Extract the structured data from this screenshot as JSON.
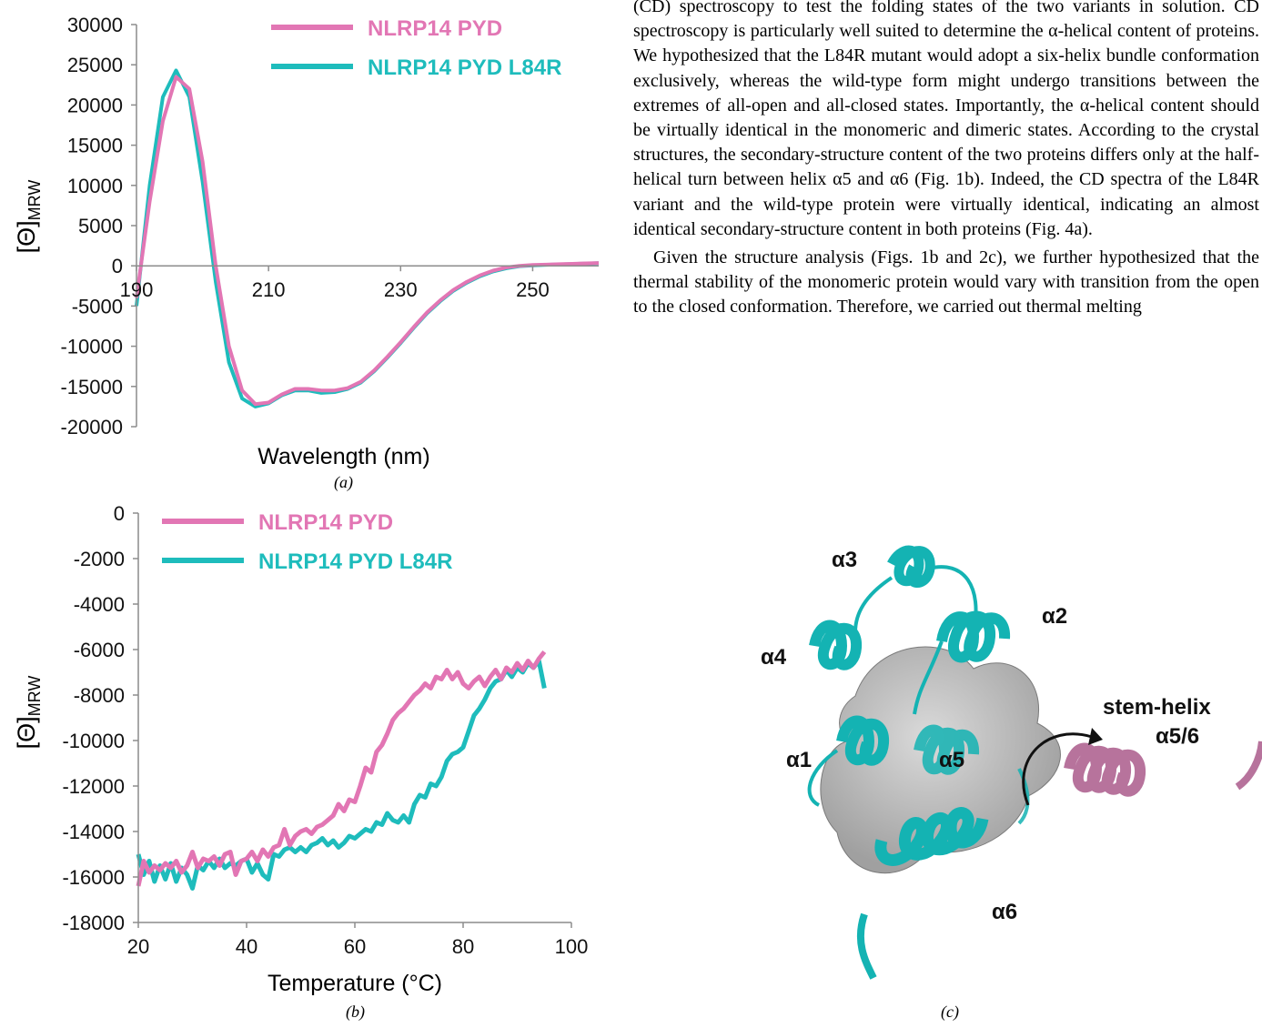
{
  "panel_a": {
    "caption": "(a)",
    "chart_data": {
      "type": "line",
      "title": "",
      "xlabel": "Wavelength (nm)",
      "ylabel": "[Θ]MRW",
      "xlim": [
        190,
        260
      ],
      "ylim": [
        -20000,
        30000
      ],
      "xticks": [
        "190",
        "210",
        "230",
        "250"
      ],
      "yticks": [
        "30000",
        "25000",
        "20000",
        "15000",
        "10000",
        "5000",
        "0",
        "-5000",
        "-10000",
        "-15000",
        "-20000"
      ],
      "legend_position": "top-right",
      "series": [
        {
          "name": "NLRP14 PYD",
          "color": "#e276b4",
          "x": [
            190,
            192,
            194,
            196,
            198,
            200,
            202,
            204,
            206,
            208,
            210,
            212,
            214,
            216,
            218,
            220,
            222,
            224,
            226,
            228,
            230,
            232,
            234,
            236,
            238,
            240,
            242,
            244,
            246,
            248,
            250,
            252,
            254,
            256,
            258,
            260
          ],
          "y": [
            -4000,
            8000,
            18000,
            23500,
            22000,
            13000,
            0,
            -10000,
            -15500,
            -17200,
            -17000,
            -16000,
            -15300,
            -15300,
            -15500,
            -15500,
            -15200,
            -14400,
            -13000,
            -11300,
            -9500,
            -7600,
            -5800,
            -4300,
            -3000,
            -2000,
            -1200,
            -600,
            -200,
            0,
            100,
            150,
            200,
            250,
            300,
            350
          ]
        },
        {
          "name": "NLRP14 PYD L84R",
          "color": "#1ebcbc",
          "x": [
            190,
            192,
            194,
            196,
            198,
            200,
            202,
            204,
            206,
            208,
            210,
            212,
            214,
            216,
            218,
            220,
            222,
            224,
            226,
            228,
            230,
            232,
            234,
            236,
            238,
            240,
            242,
            244,
            246,
            248,
            250,
            252,
            254,
            256,
            258,
            260
          ],
          "y": [
            -5000,
            10000,
            21000,
            24300,
            21000,
            10500,
            -2000,
            -12000,
            -16500,
            -17500,
            -17100,
            -16100,
            -15500,
            -15500,
            -15800,
            -15700,
            -15300,
            -14500,
            -13100,
            -11400,
            -9600,
            -7700,
            -5900,
            -4400,
            -3100,
            -2100,
            -1300,
            -700,
            -300,
            -50,
            50,
            120,
            180,
            230,
            280,
            330
          ]
        }
      ]
    }
  },
  "panel_b": {
    "caption": "(b)",
    "chart_data": {
      "type": "line",
      "title": "",
      "xlabel": "Temperature (°C)",
      "ylabel": "[Θ]MRW",
      "xlim": [
        20,
        100
      ],
      "ylim": [
        -18000,
        0
      ],
      "xticks": [
        "20",
        "40",
        "60",
        "80",
        "100"
      ],
      "yticks": [
        "0",
        "-2000",
        "-4000",
        "-6000",
        "-8000",
        "-10000",
        "-12000",
        "-14000",
        "-16000",
        "-18000"
      ],
      "legend_position": "top-left",
      "series": [
        {
          "name": "NLRP14 PYD",
          "color": "#e276b4",
          "x": [
            20,
            21,
            22,
            23,
            24,
            25,
            26,
            27,
            28,
            29,
            30,
            31,
            32,
            33,
            34,
            35,
            36,
            37,
            38,
            39,
            40,
            41,
            42,
            43,
            44,
            45,
            46,
            47,
            48,
            49,
            50,
            51,
            52,
            53,
            54,
            55,
            56,
            57,
            58,
            59,
            60,
            61,
            62,
            63,
            64,
            65,
            66,
            67,
            68,
            69,
            70,
            71,
            72,
            73,
            74,
            75,
            76,
            77,
            78,
            79,
            80,
            81,
            82,
            83,
            84,
            85,
            86,
            87,
            88,
            89,
            90,
            91,
            92,
            93,
            94,
            95
          ],
          "y": [
            -16400,
            -15300,
            -15800,
            -15500,
            -15700,
            -15400,
            -15600,
            -15300,
            -15800,
            -15500,
            -14900,
            -15600,
            -15200,
            -15300,
            -15100,
            -15500,
            -15000,
            -14900,
            -15900,
            -15300,
            -15200,
            -14900,
            -15300,
            -14800,
            -15100,
            -14700,
            -14600,
            -13900,
            -14600,
            -14200,
            -14000,
            -13900,
            -14100,
            -13800,
            -13700,
            -13500,
            -13300,
            -12800,
            -13100,
            -12600,
            -12700,
            -12000,
            -11200,
            -11400,
            -10500,
            -10200,
            -9700,
            -9100,
            -8800,
            -8600,
            -8300,
            -8000,
            -7800,
            -7500,
            -7700,
            -7200,
            -7300,
            -6900,
            -7300,
            -7000,
            -7500,
            -7700,
            -7400,
            -7200,
            -7600,
            -7200,
            -6900,
            -7300,
            -6800,
            -7000,
            -6600,
            -6900,
            -6500,
            -6800,
            -6400,
            -6100
          ]
        },
        {
          "name": "NLRP14 PYD L84R",
          "color": "#1ebcbc",
          "x": [
            20,
            21,
            22,
            23,
            24,
            25,
            26,
            27,
            28,
            29,
            30,
            31,
            32,
            33,
            34,
            35,
            36,
            37,
            38,
            39,
            40,
            41,
            42,
            43,
            44,
            45,
            46,
            47,
            48,
            49,
            50,
            51,
            52,
            53,
            54,
            55,
            56,
            57,
            58,
            59,
            60,
            61,
            62,
            63,
            64,
            65,
            66,
            67,
            68,
            69,
            70,
            71,
            72,
            73,
            74,
            75,
            76,
            77,
            78,
            79,
            80,
            81,
            82,
            83,
            84,
            85,
            86,
            87,
            88,
            89,
            90,
            91,
            92,
            93,
            94,
            95
          ],
          "y": [
            -15000,
            -15900,
            -15300,
            -16200,
            -15500,
            -16100,
            -15400,
            -16200,
            -15600,
            -15900,
            -16500,
            -15500,
            -15700,
            -15300,
            -15600,
            -15200,
            -15600,
            -15400,
            -15500,
            -15300,
            -15200,
            -15800,
            -15400,
            -15900,
            -16100,
            -15000,
            -15100,
            -14800,
            -14700,
            -14900,
            -14700,
            -14900,
            -14600,
            -14500,
            -14300,
            -14600,
            -14400,
            -14700,
            -14500,
            -14200,
            -14300,
            -14100,
            -13900,
            -14000,
            -13600,
            -13700,
            -13200,
            -13500,
            -13600,
            -13300,
            -13600,
            -12800,
            -12400,
            -12500,
            -11900,
            -12000,
            -11600,
            -10900,
            -10600,
            -10500,
            -10300,
            -9600,
            -8900,
            -8600,
            -8200,
            -7700,
            -7400,
            -7300,
            -6900,
            -7200,
            -6800,
            -7000,
            -6600,
            -6800,
            -6500,
            -7700
          ]
        }
      ]
    }
  },
  "panel_c": {
    "caption": "(c)",
    "labels": [
      "α3",
      "α2",
      "α4",
      "stem-helix",
      "α5/6",
      "α1",
      "α5",
      "α6"
    ]
  },
  "body": {
    "p1": "(CD) spectroscopy to test the folding states of the two variants in solution. CD spectroscopy is particularly well suited to determine the α-helical content of proteins. We hypothesized that the L84R mutant would adopt a six-helix bundle conformation exclusively, whereas the wild-type form might undergo transitions between the extremes of all-open and all-closed states. Importantly, the α-helical content should be virtually identical in the monomeric and dimeric states. According to the crystal structures, the secondary-structure content of the two proteins differs only at the half-helical turn between helix α5 and α6 (Fig. 1b). Indeed, the CD spectra of the L84R variant and the wild-type protein were virtually identical, indicating an almost identical secondary-structure content in both proteins (Fig. 4a).",
    "p2": "Given the structure analysis (Figs. 1b and 2c), we further hypothesized that the thermal stability of the monomeric protein would vary with transition from the open to the closed conformation. Therefore, we carried out thermal melting"
  },
  "colors": {
    "wt": "#e276b4",
    "mutant": "#1ebcbc",
    "stem_helix": "#b7739c",
    "surface": "#a8a8a8"
  }
}
